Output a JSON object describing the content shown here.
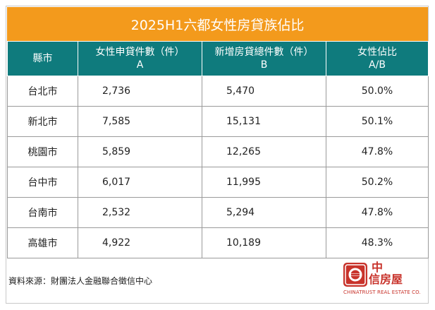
{
  "title": "2025H1六都女性房貸族佔比",
  "headers": [
    {
      "line1": "縣市",
      "line2": ""
    },
    {
      "line1": "女性申貸件數（件）",
      "line2": "A"
    },
    {
      "line1": "新增房貸總件數（件）",
      "line2": "B"
    },
    {
      "line1": "女性佔比",
      "line2": "A/B"
    }
  ],
  "rows": [
    {
      "city": "台北市",
      "a": "2,736",
      "b": "5,470",
      "ratio": "50.0%"
    },
    {
      "city": "新北市",
      "a": "7,585",
      "b": "15,131",
      "ratio": "50.1%"
    },
    {
      "city": "桃園市",
      "a": "5,859",
      "b": "12,265",
      "ratio": "47.8%"
    },
    {
      "city": "台中市",
      "a": "6,017",
      "b": "11,995",
      "ratio": "50.2%"
    },
    {
      "city": "台南市",
      "a": "2,532",
      "b": "5,294",
      "ratio": "47.8%"
    },
    {
      "city": "高雄市",
      "a": "4,922",
      "b": "10,189",
      "ratio": "48.3%"
    }
  ],
  "source": "資料來源：財團法人金融聯合徵信中心",
  "logo": {
    "line1": "中",
    "line2": "信房屋",
    "english": "CHINATRUST REAL ESTATE CO."
  },
  "colors": {
    "title_bg": "#f39a1c",
    "header_bg": "#0f7b7d",
    "logo_red": "#c8332b"
  }
}
